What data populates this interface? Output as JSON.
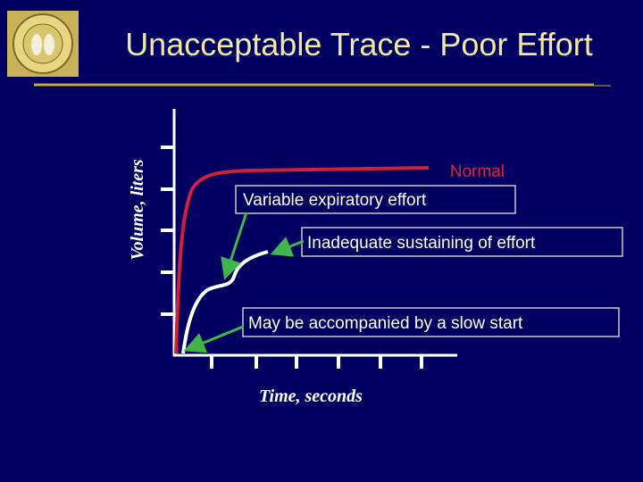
{
  "header": {
    "title": "Unacceptable Trace - Poor Effort"
  },
  "figure": {
    "y_axis_label": "Volume, liters",
    "x_axis_label": "Time, seconds",
    "annotations": {
      "normal": "Normal",
      "variable": "Variable expiratory effort",
      "inadequate": "Inadequate sustaining of effort",
      "slow_start": "May be accompanied by a slow start"
    }
  }
}
